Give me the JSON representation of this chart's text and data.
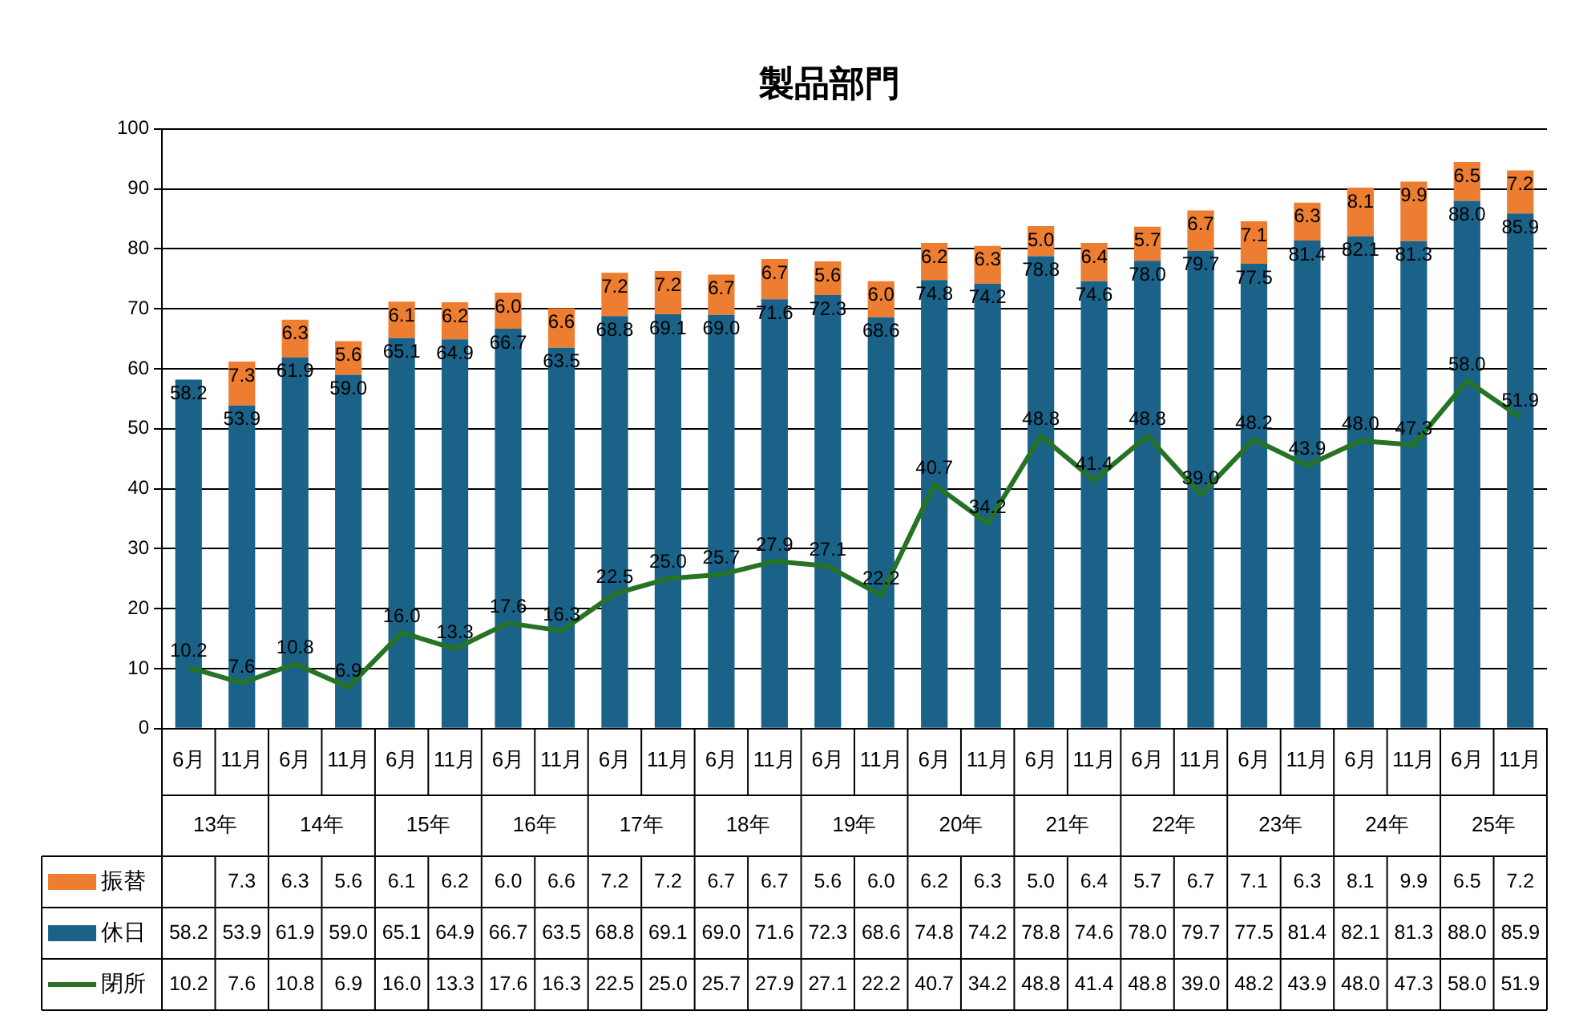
{
  "chart_data": {
    "type": "bar",
    "title": "製品部門",
    "stacked": true,
    "grid": "y",
    "legend": "bottom",
    "categories": [
      "6月",
      "11月",
      "6月",
      "11月",
      "6月",
      "11月",
      "6月",
      "11月",
      "6月",
      "11月",
      "6月",
      "11月",
      "6月",
      "11月",
      "6月",
      "11月",
      "6月",
      "11月",
      "6月",
      "11月",
      "6月",
      "11月",
      "6月",
      "11月",
      "6月",
      "11月"
    ],
    "annotations": [
      "13年",
      "14年",
      "15年",
      "16年",
      "17年",
      "18年",
      "19年",
      "20年",
      "21年",
      "22年",
      "23年",
      "24年",
      "25年"
    ],
    "ylim": [
      0,
      100
    ],
    "yticks": [
      0,
      10,
      20,
      30,
      40,
      50,
      60,
      70,
      80,
      90,
      100
    ],
    "series": [
      {
        "name": "休日",
        "color": "#1b6289",
        "values": [
          58.2,
          53.9,
          61.9,
          59.0,
          65.1,
          64.9,
          66.7,
          63.5,
          68.8,
          69.1,
          69.0,
          71.6,
          72.3,
          68.6,
          74.8,
          74.2,
          78.8,
          74.6,
          78.0,
          79.7,
          77.5,
          81.4,
          82.1,
          81.3,
          88.0,
          85.9
        ],
        "value_labels": [
          "58.2",
          "53.9",
          "61.9",
          "59.0",
          "65.1",
          "64.9",
          "66.7",
          "63.5",
          "68.8",
          "69.1",
          "69.0",
          "71.6",
          "72.3",
          "68.6",
          "74.8",
          "74.2",
          "78.8",
          "74.6",
          "78.0",
          "79.7",
          "77.5",
          "81.4",
          "82.1",
          "81.3",
          "88.0",
          "85.9"
        ]
      },
      {
        "name": "振替",
        "color": "#ed7d31",
        "values": [
          null,
          7.3,
          6.3,
          5.6,
          6.1,
          6.2,
          6.0,
          6.6,
          7.2,
          7.2,
          6.7,
          6.7,
          5.6,
          6.0,
          6.2,
          6.3,
          5.0,
          6.4,
          5.7,
          6.7,
          7.1,
          6.3,
          8.1,
          9.9,
          6.5,
          7.2
        ],
        "value_labels": [
          null,
          "7.3",
          "6.3",
          "5.6",
          "6.1",
          "6.2",
          "6.0",
          "6.6",
          "7.2",
          "7.2",
          "6.7",
          "6.7",
          "5.6",
          "6.0",
          "6.2",
          "6.3",
          "5.0",
          "6.4",
          "5.7",
          "6.7",
          "7.1",
          "6.3",
          "8.1",
          "9.9",
          "6.5",
          "7.2"
        ]
      },
      {
        "name": "閉所",
        "type": "line",
        "color": "#267326",
        "values": [
          10.2,
          7.6,
          10.8,
          6.9,
          16.0,
          13.3,
          17.6,
          16.3,
          22.5,
          25.0,
          25.7,
          27.9,
          27.1,
          22.2,
          40.7,
          34.2,
          48.8,
          41.4,
          48.8,
          39.0,
          48.2,
          43.9,
          48.0,
          47.3,
          58.0,
          51.9
        ],
        "value_labels": [
          "10.2",
          "7.6",
          "10.8",
          "6.9",
          "16.0",
          "13.3",
          "17.6",
          "16.3",
          "22.5",
          "25.0",
          "25.7",
          "27.9",
          "27.1",
          "22.2",
          "40.7",
          "34.2",
          "48.8",
          "41.4",
          "48.8",
          "39.0",
          "48.2",
          "43.9",
          "48.0",
          "47.3",
          "58.0",
          "51.9"
        ]
      }
    ]
  }
}
